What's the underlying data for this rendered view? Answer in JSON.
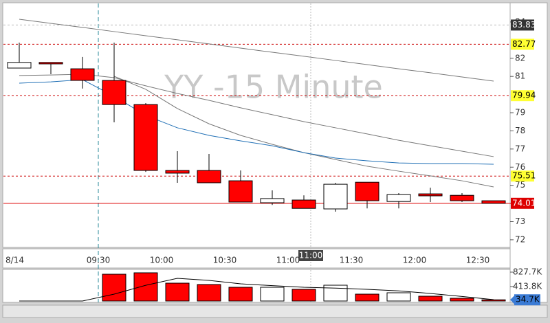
{
  "chart_data": [
    {
      "type": "candlestick",
      "title": "YY -15 Minute",
      "categories": [
        "8/14",
        null,
        null,
        "09:30",
        null,
        "10:00",
        null,
        "10:30",
        null,
        "11:00",
        null,
        "11:30",
        null,
        "12:00",
        null,
        "12:30"
      ],
      "open": [
        81.46,
        81.77,
        81.42,
        80.78,
        79.45,
        75.82,
        75.82,
        75.25,
        74.04,
        74.19,
        73.7,
        75.17,
        74.11,
        74.53,
        74.45,
        74.15
      ],
      "high": [
        82.86,
        81.77,
        82.07,
        82.86,
        79.53,
        76.88,
        76.73,
        75.82,
        74.72,
        74.45,
        75.14,
        75.17,
        74.57,
        74.87,
        74.57,
        74.15
      ],
      "low": [
        81.46,
        81.12,
        80.33,
        78.47,
        75.74,
        75.14,
        75.14,
        74.08,
        73.92,
        73.73,
        73.55,
        73.73,
        73.73,
        74.08,
        74.08,
        74.01
      ],
      "close": [
        81.77,
        81.69,
        80.78,
        79.45,
        75.82,
        75.67,
        75.14,
        74.08,
        74.27,
        73.73,
        75.06,
        74.15,
        74.49,
        74.42,
        74.15,
        74.01
      ],
      "up_color": "#ffffff",
      "down_color": "#ff0000",
      "series": [
        {
          "color": "#777777",
          "values": [
            84.15,
            83.92,
            83.7,
            83.47,
            83.24,
            83.02,
            82.79,
            82.56,
            82.33,
            82.11,
            81.88,
            81.65,
            81.42,
            81.2,
            80.97,
            80.74
          ]
        },
        {
          "color": "#777777",
          "values": [
            81.05,
            81.08,
            81.12,
            80.93,
            80.48,
            80.06,
            79.68,
            79.27,
            78.89,
            78.51,
            78.17,
            77.83,
            77.48,
            77.18,
            76.88,
            76.58
          ]
        },
        {
          "color": "#777777",
          "values": [
            null,
            null,
            null,
            81.01,
            80.29,
            79.23,
            78.39,
            77.75,
            77.26,
            76.8,
            76.42,
            76.05,
            75.78,
            75.52,
            75.25,
            74.91
          ]
        },
        {
          "color": "#1f6fb5",
          "values": [
            80.63,
            80.7,
            80.82,
            79.91,
            78.85,
            78.17,
            77.75,
            77.45,
            77.18,
            76.8,
            76.5,
            76.35,
            76.23,
            76.2,
            76.2,
            76.16
          ]
        }
      ],
      "levels": [
        {
          "value": 83.83,
          "color": "#bbbbbb",
          "label_color": "#333333",
          "text_color": "#ffffff"
        },
        {
          "value": 82.77,
          "color": "#cc0000",
          "label_color": "#ffff33",
          "text_color": "#000000"
        },
        {
          "value": 79.94,
          "color": "#cc0000",
          "label_color": "#ffff33",
          "text_color": "#000000"
        },
        {
          "value": 75.51,
          "color": "#cc0000",
          "label_color": "#ffff33",
          "text_color": "#000000"
        },
        {
          "value": 74.01,
          "color": "#dd0000",
          "label_color": "#dd0000",
          "text_color": "#ffffff",
          "solid": true
        }
      ],
      "crosshair_label": "11:00",
      "ylim": [
        71.58,
        85.02
      ],
      "yticks": [
        72,
        73,
        75,
        76,
        77,
        78,
        79,
        81,
        82,
        84
      ]
    },
    {
      "type": "bar",
      "values": [
        0,
        0,
        0,
        768000,
        808000,
        512000,
        473000,
        394000,
        394000,
        335000,
        453000,
        197000,
        236000,
        138000,
        79000,
        34700
      ],
      "value_labels": [
        null,
        null,
        null,
        null,
        null,
        null,
        null,
        null,
        null,
        null,
        null,
        null,
        null,
        null,
        null,
        "34.7K"
      ],
      "colors": [
        "#ff0000",
        "#ff0000",
        "#ff0000",
        "#ff0000",
        "#ff0000",
        "#ff0000",
        "#ff0000",
        "#ff0000",
        "#ffffff",
        "#ff0000",
        "#ffffff",
        "#ff0000",
        "#ffffff",
        "#ff0000",
        "#ff0000",
        "#ff0000"
      ],
      "series": [
        {
          "color": "#000000",
          "values": [
            0,
            0,
            0,
            197000,
            450000,
            650000,
            590000,
            493000,
            440000,
            394000,
            370000,
            335000,
            290000,
            217000,
            130000,
            39000
          ]
        }
      ],
      "ylim": [
        0,
        906000
      ],
      "yticks": [
        {
          "value": 413800,
          "label": "413.8K"
        },
        {
          "value": 827700,
          "label": "827.7K"
        }
      ]
    }
  ]
}
